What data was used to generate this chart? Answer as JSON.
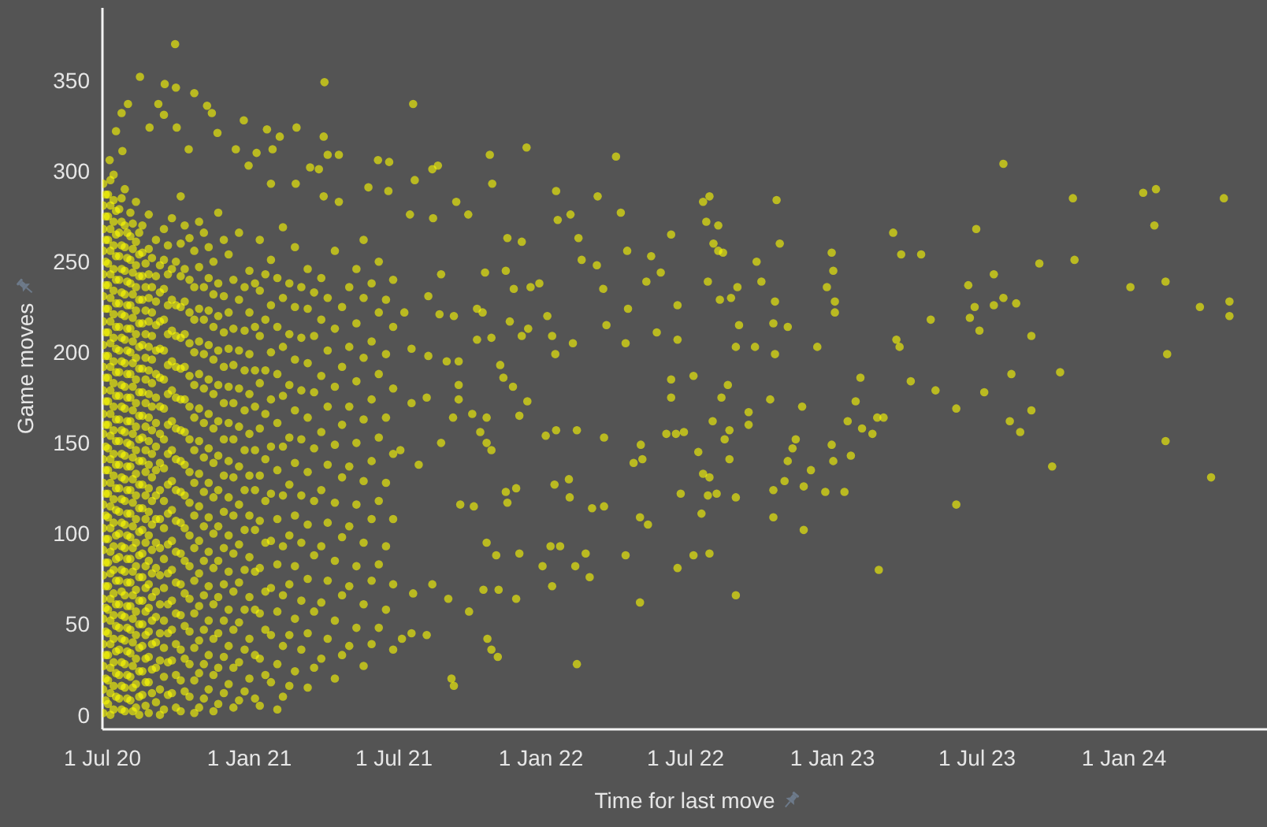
{
  "chart_data": {
    "type": "scatter",
    "xlabel": "Time for last move",
    "ylabel": "Game moves",
    "color": "#ffff00",
    "marker": "circle",
    "xlim": [
      "2020-07-01",
      "2024-06-28"
    ],
    "xticks": [
      {
        "value": "2020-07-01",
        "label": "1 Jul 20"
      },
      {
        "value": "2021-01-01",
        "label": "1 Jan 21"
      },
      {
        "value": "2021-07-01",
        "label": "1 Jul 21"
      },
      {
        "value": "2022-01-01",
        "label": "1 Jan 22"
      },
      {
        "value": "2022-07-01",
        "label": "1 Jul 22"
      },
      {
        "value": "2023-01-01",
        "label": "1 Jan 23"
      },
      {
        "value": "2023-07-01",
        "label": "1 Jul 23"
      },
      {
        "value": "2024-01-01",
        "label": "1 Jan 24"
      }
    ],
    "ylim": [
      -8,
      390
    ],
    "yticks": [
      0,
      50,
      100,
      150,
      200,
      250,
      300,
      350
    ],
    "x": [
      "2020-07-02",
      "2020-07-02",
      "2020-07-02",
      "2020-07-02",
      "2020-07-02",
      "2020-07-02",
      "2020-07-02",
      "2020-07-02",
      "2020-07-02",
      "2020-07-02",
      "2020-07-02",
      "2020-07-02",
      "2020-07-02",
      "2020-07-02",
      "2020-07-02",
      "2020-07-02",
      "2020-07-02",
      "2020-07-02",
      "2020-07-02",
      "2020-07-02",
      "2020-07-02",
      "2020-07-02",
      "2020-07-02",
      "2020-07-02",
      "2020-07-08",
      "2020-07-08",
      "2020-07-08",
      "2020-07-08",
      "2020-07-08",
      "2020-07-08",
      "2020-07-08",
      "2020-07-08",
      "2020-07-08",
      "2020-07-08",
      "2020-07-08",
      "2020-07-08",
      "2020-07-08",
      "2020-07-08",
      "2020-07-08",
      "2020-07-08",
      "2020-07-08",
      "2020-07-08",
      "2020-07-08",
      "2020-07-08",
      "2020-07-08",
      "2020-07-08",
      "2020-07-08",
      "2020-07-15",
      "2020-07-15",
      "2020-07-15",
      "2020-07-15",
      "2020-07-15",
      "2020-07-15",
      "2020-07-15",
      "2020-07-15",
      "2020-07-15",
      "2020-07-15",
      "2020-07-15",
      "2020-07-15",
      "2020-07-15",
      "2020-07-15",
      "2020-07-15",
      "2020-07-15",
      "2020-07-15",
      "2020-07-15",
      "2020-07-15",
      "2020-07-15",
      "2020-07-15",
      "2020-07-15",
      "2020-07-15",
      "2020-07-15",
      "2020-07-22",
      "2020-07-22",
      "2020-07-22",
      "2020-07-22",
      "2020-07-22",
      "2020-07-22",
      "2020-07-22",
      "2020-07-22",
      "2020-07-22",
      "2020-07-22",
      "2020-07-22",
      "2020-07-22",
      "2020-07-22",
      "2020-07-22",
      "2020-07-22",
      "2020-07-22",
      "2020-07-22",
      "2020-07-22",
      "2020-07-22",
      "2020-07-22",
      "2020-07-22",
      "2020-07-22",
      "2020-07-29",
      "2020-07-29",
      "2020-07-29",
      "2020-07-29",
      "2020-07-29",
      "2020-07-29",
      "2020-07-29",
      "2020-07-29",
      "2020-07-29",
      "2020-07-29",
      "2020-07-29",
      "2020-07-29",
      "2020-07-29",
      "2020-07-29",
      "2020-07-29",
      "2020-07-29",
      "2020-07-29",
      "2020-07-29",
      "2020-07-29",
      "2020-07-29",
      "2020-07-29",
      "2020-07-29",
      "2020-07-29",
      "2020-08-05",
      "2020-08-05",
      "2020-08-05",
      "2020-08-05",
      "2020-08-05",
      "2020-08-05",
      "2020-08-05",
      "2020-08-05",
      "2020-08-05",
      "2020-08-05",
      "2020-08-05",
      "2020-08-05",
      "2020-08-05",
      "2020-08-05",
      "2020-08-05",
      "2020-08-05",
      "2020-08-05",
      "2020-08-05",
      "2020-08-05",
      "2020-08-05",
      "2020-08-05",
      "2020-08-05",
      "2020-08-12",
      "2020-08-12",
      "2020-08-12",
      "2020-08-12",
      "2020-08-12",
      "2020-08-12",
      "2020-08-12",
      "2020-08-12",
      "2020-08-12",
      "2020-08-12",
      "2020-08-12",
      "2020-08-12",
      "2020-08-12",
      "2020-08-12",
      "2020-08-12",
      "2020-08-12",
      "2020-08-12",
      "2020-08-12",
      "2020-08-12",
      "2020-08-12",
      "2020-08-12",
      "2020-08-12",
      "2020-08-20",
      "2020-08-20",
      "2020-08-20",
      "2020-08-20",
      "2020-08-20",
      "2020-08-20",
      "2020-08-20",
      "2020-08-20",
      "2020-08-20",
      "2020-08-20",
      "2020-08-20",
      "2020-08-20",
      "2020-08-20",
      "2020-08-20",
      "2020-08-20",
      "2020-08-20",
      "2020-08-20",
      "2020-08-20",
      "2020-08-20",
      "2020-08-20",
      "2020-08-20",
      "2020-08-28",
      "2020-08-28",
      "2020-08-28",
      "2020-08-28",
      "2020-08-28",
      "2020-08-28",
      "2020-08-28",
      "2020-08-28",
      "2020-08-28",
      "2020-08-28",
      "2020-08-28",
      "2020-08-28",
      "2020-08-28",
      "2020-08-28",
      "2020-08-28",
      "2020-08-28",
      "2020-08-28",
      "2020-08-28",
      "2020-08-28",
      "2020-08-28",
      "2020-08-28",
      "2020-09-06",
      "2020-09-06",
      "2020-09-06",
      "2020-09-06",
      "2020-09-06",
      "2020-09-06",
      "2020-09-06",
      "2020-09-06",
      "2020-09-06",
      "2020-09-06",
      "2020-09-06",
      "2020-09-06",
      "2020-09-06",
      "2020-09-06",
      "2020-09-06",
      "2020-09-06",
      "2020-09-06",
      "2020-09-06",
      "2020-09-06",
      "2020-09-16",
      "2020-09-16",
      "2020-09-16",
      "2020-09-16",
      "2020-09-16",
      "2020-09-16",
      "2020-09-16",
      "2020-09-16",
      "2020-09-16",
      "2020-09-16",
      "2020-09-16",
      "2020-09-16",
      "2020-09-16",
      "2020-09-16",
      "2020-09-16",
      "2020-09-16",
      "2020-09-16",
      "2020-09-26",
      "2020-09-26",
      "2020-09-26",
      "2020-09-26",
      "2020-09-26",
      "2020-09-26",
      "2020-09-26",
      "2020-09-26",
      "2020-09-26",
      "2020-09-26",
      "2020-09-26",
      "2020-09-26",
      "2020-09-26",
      "2020-09-26",
      "2020-09-26",
      "2020-09-26",
      "2020-10-07",
      "2020-10-07",
      "2020-10-07",
      "2020-10-07",
      "2020-10-07",
      "2020-10-07",
      "2020-10-07",
      "2020-10-07",
      "2020-10-07",
      "2020-10-07",
      "2020-10-07",
      "2020-10-07",
      "2020-10-07",
      "2020-10-07",
      "2020-10-07",
      "2020-10-07",
      "2020-10-07",
      "2020-10-18",
      "2020-10-18",
      "2020-10-18",
      "2020-10-18",
      "2020-10-18",
      "2020-10-18",
      "2020-10-18",
      "2020-10-18",
      "2020-10-18",
      "2020-10-18",
      "2020-10-18",
      "2020-10-18",
      "2020-10-18",
      "2020-10-18",
      "2020-10-18",
      "2020-10-30",
      "2020-10-30",
      "2020-10-30",
      "2020-10-30",
      "2020-10-30",
      "2020-10-30",
      "2020-10-30",
      "2020-10-30",
      "2020-10-30",
      "2020-10-30",
      "2020-10-30",
      "2020-10-30",
      "2020-10-30",
      "2020-10-30",
      "2020-10-30",
      "2020-11-11",
      "2020-11-11",
      "2020-11-11",
      "2020-11-11",
      "2020-11-11",
      "2020-11-11",
      "2020-11-11",
      "2020-11-11",
      "2020-11-11",
      "2020-11-11",
      "2020-11-11",
      "2020-11-11",
      "2020-11-11",
      "2020-11-11",
      "2020-11-23",
      "2020-11-23",
      "2020-11-23",
      "2020-11-23",
      "2020-11-23",
      "2020-11-23",
      "2020-11-23",
      "2020-11-23",
      "2020-11-23",
      "2020-11-23",
      "2020-11-23",
      "2020-11-23",
      "2020-11-23",
      "2020-11-23",
      "2020-12-06",
      "2020-12-06",
      "2020-12-06",
      "2020-12-06",
      "2020-12-06",
      "2020-12-06",
      "2020-12-06",
      "2020-12-06",
      "2020-12-06",
      "2020-12-06",
      "2020-12-06",
      "2020-12-06",
      "2020-12-19",
      "2020-12-19",
      "2020-12-19",
      "2020-12-19",
      "2020-12-19",
      "2020-12-19",
      "2020-12-19",
      "2020-12-19",
      "2020-12-19",
      "2020-12-19",
      "2020-12-19",
      "2020-12-19",
      "2021-01-01",
      "2021-01-01",
      "2021-01-01",
      "2021-01-01",
      "2021-01-01",
      "2021-01-01",
      "2021-01-01",
      "2021-01-01",
      "2021-01-01",
      "2021-01-01",
      "2021-01-01",
      "2021-01-14",
      "2021-01-14",
      "2021-01-14",
      "2021-01-14",
      "2021-01-14",
      "2021-01-14",
      "2021-01-14",
      "2021-01-14",
      "2021-01-14",
      "2021-01-14",
      "2021-01-14",
      "2021-01-28",
      "2021-01-28",
      "2021-01-28",
      "2021-01-28",
      "2021-01-28",
      "2021-01-28",
      "2021-01-28",
      "2021-01-28",
      "2021-01-28",
      "2021-01-28",
      "2021-02-12",
      "2021-02-12",
      "2021-02-12",
      "2021-02-12",
      "2021-02-12",
      "2021-02-12",
      "2021-02-12",
      "2021-02-12",
      "2021-02-12",
      "2021-02-12",
      "2021-02-27",
      "2021-02-27",
      "2021-02-27",
      "2021-02-27",
      "2021-02-27",
      "2021-02-27",
      "2021-02-27",
      "2021-02-27",
      "2021-02-27",
      "2021-03-15",
      "2021-03-15",
      "2021-03-15",
      "2021-03-15",
      "2021-03-15",
      "2021-03-15",
      "2021-03-15",
      "2021-03-15",
      "2021-03-15",
      "2021-04-01",
      "2021-04-01",
      "2021-04-01",
      "2021-04-01",
      "2021-04-01",
      "2021-04-01",
      "2021-04-01",
      "2021-04-01",
      "2021-04-18",
      "2021-04-18",
      "2021-04-18",
      "2021-04-18",
      "2021-04-18",
      "2021-04-18",
      "2021-04-18",
      "2021-04-18",
      "2021-05-06",
      "2021-05-06",
      "2021-05-06",
      "2021-05-06",
      "2021-05-06",
      "2021-05-06",
      "2021-05-06",
      "2021-05-24",
      "2021-05-24",
      "2021-05-24",
      "2021-05-24",
      "2021-05-24",
      "2021-05-24",
      "2021-05-24",
      "2021-05-24",
      "2021-06-12",
      "2021-06-12",
      "2021-06-12",
      "2021-06-12",
      "2021-06-12",
      "2021-06-12",
      "2021-06-12",
      "2021-06-30",
      "2021-06-30",
      "2021-06-30",
      "2021-06-30",
      "2021-06-30",
      "2021-06-30",
      "2021-06-30",
      "2020-09-30",
      "2020-08-17",
      "2020-09-17",
      "2020-10-01",
      "2020-10-24",
      "2021-04-05",
      "2020-08-02",
      "2020-07-25",
      "2020-09-09",
      "2020-11-09",
      "2020-11-15",
      "2020-09-16",
      "2020-12-25",
      "2020-07-18",
      "2020-08-29",
      "2020-10-02",
      "2020-11-22",
      "2021-01-23",
      "2021-03-01",
      "2021-04-04",
      "2021-02-08",
      "2020-12-15",
      "2021-01-10",
      "2021-01-30",
      "2020-10-17",
      "2021-04-09",
      "2021-04-23",
      "2021-06-11",
      "2021-06-25",
      "2020-07-10",
      "2020-07-26",
      "2021-03-18",
      "2021-03-29",
      "2020-12-31",
      "2021-02-28",
      "2021-01-28",
      "2021-04-04",
      "2021-04-23",
      "2021-05-30",
      "2021-06-24",
      "2021-08-18",
      "2021-07-25",
      "2021-12-14",
      "2021-10-29",
      "2022-04-05",
      "2022-01-20",
      "2022-03-13",
      "2022-04-11",
      "2022-02-07",
      "2022-01-22",
      "2021-09-17",
      "2021-10-02",
      "2021-08-19",
      "2021-11-01",
      "2021-08-25",
      "2021-07-27",
      "2021-07-21",
      "2022-02-17",
      "2021-11-20",
      "2021-12-08",
      "2022-05-19",
      "2022-04-19",
      "2022-03-12",
      "2022-02-21",
      "2022-05-31",
      "2022-05-13",
      "2022-03-20",
      "2021-12-19",
      "2021-12-30",
      "2021-11-28",
      "2021-11-18",
      "2021-10-23",
      "2021-08-29",
      "2021-10-13",
      "2021-10-20",
      "2021-09-14",
      "2021-08-27",
      "2021-08-13",
      "2021-07-14",
      "2022-04-20",
      "2022-03-24",
      "2022-04-17",
      "2022-05-26",
      "2022-02-10",
      "2022-01-15",
      "2022-01-19",
      "2022-01-09",
      "2021-12-16",
      "2021-12-08",
      "2021-11-23",
      "2021-10-31",
      "2021-10-13",
      "2021-09-20",
      "2021-09-05",
      "2021-08-13",
      "2021-07-23",
      "2021-11-11",
      "2021-11-15",
      "2021-11-27",
      "2021-12-15",
      "2021-12-05",
      "2021-10-25",
      "2021-10-07",
      "2021-10-17",
      "2021-10-25",
      "2021-10-31",
      "2021-09-20",
      "2021-09-20",
      "2021-09-13",
      "2021-08-11",
      "2021-07-23",
      "2021-08-29",
      "2021-08-01",
      "2021-07-09",
      "2022-01-07",
      "2022-01-20",
      "2022-02-15",
      "2022-03-21",
      "2022-05-06",
      "2022-06-07",
      "2022-04-27",
      "2022-05-08",
      "2022-03-21",
      "2022-03-06",
      "2022-02-06",
      "2022-01-18",
      "2022-02-05",
      "2021-11-18",
      "2021-12-01",
      "2021-11-20",
      "2021-10-09",
      "2021-09-22",
      "2021-10-25",
      "2021-11-06",
      "2021-12-05",
      "2022-01-13",
      "2022-01-25",
      "2022-02-26",
      "2022-04-17",
      "2022-05-05",
      "2022-05-15",
      "2022-03-03",
      "2022-02-13",
      "2022-01-03",
      "2022-01-15",
      "2021-10-21",
      "2021-11-09",
      "2021-12-01",
      "2021-10-03",
      "2021-09-07",
      "2021-08-18",
      "2021-07-25",
      "2021-07-11",
      "2021-07-23",
      "2021-08-11",
      "2021-10-26",
      "2021-10-31",
      "2021-11-08",
      "2021-09-11",
      "2021-09-14",
      "2022-02-15",
      "2022-05-05",
      "2023-08-03",
      "2023-10-29",
      "2024-01-25",
      "2024-02-10",
      "2024-05-05",
      "2024-02-08",
      "2023-10-31",
      "2023-09-17",
      "2024-01-09",
      "2024-02-22",
      "2024-04-05",
      "2024-05-12",
      "2024-05-12",
      "2024-02-24",
      "2024-02-22",
      "2024-04-19",
      "2023-10-03",
      "2023-10-13",
      "2023-09-07",
      "2023-09-07",
      "2023-08-24",
      "2023-08-11",
      "2023-08-13",
      "2023-07-22",
      "2023-08-03",
      "2023-08-19",
      "2023-07-22",
      "2023-06-30",
      "2023-06-20",
      "2023-06-28",
      "2023-06-22",
      "2023-07-04",
      "2023-07-10",
      "2023-06-05",
      "2023-06-05",
      "2023-05-10",
      "2023-05-04",
      "2023-04-22",
      "2023-03-28",
      "2023-03-18",
      "2023-04-09",
      "2023-03-22",
      "2023-03-26",
      "2023-02-28",
      "2023-02-20",
      "2023-02-26",
      "2023-03-06",
      "2023-02-07",
      "2023-02-05",
      "2023-01-30",
      "2023-01-20",
      "2023-01-24",
      "2022-12-31",
      "2023-01-02",
      "2022-12-25",
      "2023-01-04",
      "2023-01-04",
      "2022-12-13",
      "2022-11-24",
      "2022-12-31",
      "2023-01-02",
      "2022-12-05",
      "2022-11-26",
      "2022-12-23",
      "2023-01-16",
      "2022-11-26",
      "2022-11-16",
      "2022-11-12",
      "2022-11-06",
      "2022-11-02",
      "2022-10-19",
      "2022-10-19",
      "2022-10-23",
      "2022-10-27",
      "2022-10-21",
      "2022-10-19",
      "2022-11-06",
      "2022-10-21",
      "2022-10-15",
      "2022-09-28",
      "2022-10-04",
      "2022-09-26",
      "2022-09-02",
      "2022-09-06",
      "2022-09-04",
      "2022-08-27",
      "2022-08-13",
      "2022-07-31",
      "2022-07-23",
      "2022-07-27",
      "2022-08-11",
      "2022-08-05",
      "2022-08-11",
      "2022-08-17",
      "2022-07-29",
      "2022-06-21",
      "2022-06-21",
      "2022-06-13",
      "2022-07-11",
      "2022-06-13",
      "2022-06-13",
      "2022-08-23",
      "2022-08-15",
      "2022-09-18",
      "2022-09-18",
      "2022-08-04",
      "2022-08-25",
      "2022-08-19",
      "2022-06-29",
      "2022-06-19",
      "2022-07-17",
      "2022-08-25",
      "2022-07-23",
      "2022-07-31",
      "2022-06-25",
      "2022-07-29",
      "2022-08-09",
      "2022-09-02",
      "2022-07-21",
      "2022-07-11",
      "2022-07-31",
      "2022-06-21",
      "2022-09-02",
      "2020-07-05",
      "2020-07-05",
      "2020-07-05",
      "2020-07-05",
      "2020-07-05",
      "2020-07-05",
      "2020-07-05",
      "2020-07-05",
      "2020-07-05",
      "2020-07-05",
      "2020-07-05",
      "2020-07-05",
      "2020-07-05",
      "2020-07-05",
      "2020-07-05",
      "2020-07-05",
      "2020-07-05",
      "2020-07-05",
      "2020-07-05",
      "2020-07-05",
      "2020-07-05",
      "2020-07-05",
      "2020-07-05",
      "2020-07-11",
      "2020-07-11",
      "2020-07-11",
      "2020-07-11",
      "2020-07-11",
      "2020-07-11",
      "2020-07-11",
      "2020-07-11",
      "2020-07-11",
      "2020-07-11",
      "2020-07-11",
      "2020-07-11",
      "2020-07-11",
      "2020-07-11",
      "2020-07-11",
      "2020-07-11",
      "2020-07-11",
      "2020-07-11",
      "2020-07-11",
      "2020-07-11",
      "2020-07-11",
      "2020-07-11",
      "2020-07-11",
      "2020-07-11",
      "2020-07-18",
      "2020-07-18",
      "2020-07-18",
      "2020-07-18",
      "2020-07-18",
      "2020-07-18",
      "2020-07-18",
      "2020-07-18",
      "2020-07-18",
      "2020-07-18",
      "2020-07-18",
      "2020-07-18",
      "2020-07-18",
      "2020-07-18",
      "2020-07-18",
      "2020-07-18",
      "2020-07-18",
      "2020-07-18",
      "2020-07-18",
      "2020-07-18",
      "2020-07-18",
      "2020-07-18",
      "2020-07-25",
      "2020-07-25",
      "2020-07-25",
      "2020-07-25",
      "2020-07-25",
      "2020-07-25",
      "2020-07-25",
      "2020-07-25",
      "2020-07-25",
      "2020-07-25",
      "2020-07-25",
      "2020-07-25",
      "2020-07-25",
      "2020-07-25",
      "2020-07-25",
      "2020-07-25",
      "2020-07-25",
      "2020-07-25",
      "2020-07-25",
      "2020-07-25",
      "2020-07-25",
      "2020-07-25",
      "2020-07-25",
      "2020-08-01",
      "2020-08-01",
      "2020-08-01",
      "2020-08-01",
      "2020-08-01",
      "2020-08-01",
      "2020-08-01",
      "2020-08-01",
      "2020-08-01",
      "2020-08-01",
      "2020-08-01",
      "2020-08-01",
      "2020-08-01",
      "2020-08-01",
      "2020-08-01",
      "2020-08-01",
      "2020-08-01",
      "2020-08-01",
      "2020-08-01",
      "2020-08-01",
      "2020-08-01",
      "2020-08-08",
      "2020-08-08",
      "2020-08-08",
      "2020-08-08",
      "2020-08-08",
      "2020-08-08",
      "2020-08-08",
      "2020-08-08",
      "2020-08-08",
      "2020-08-08",
      "2020-08-08",
      "2020-08-08",
      "2020-08-08",
      "2020-08-08",
      "2020-08-08",
      "2020-08-08",
      "2020-08-08",
      "2020-08-08",
      "2020-08-08",
      "2020-08-08",
      "2020-08-08",
      "2020-08-08",
      "2020-08-16",
      "2020-08-16",
      "2020-08-16",
      "2020-08-16",
      "2020-08-16",
      "2020-08-16",
      "2020-08-16",
      "2020-08-16",
      "2020-08-16",
      "2020-08-16",
      "2020-08-16",
      "2020-08-16",
      "2020-08-16",
      "2020-08-16",
      "2020-08-16",
      "2020-08-16",
      "2020-08-16",
      "2020-08-16",
      "2020-08-16",
      "2020-08-16",
      "2020-08-16",
      "2020-08-16",
      "2020-08-24",
      "2020-08-24",
      "2020-08-24",
      "2020-08-24",
      "2020-08-24",
      "2020-08-24",
      "2020-08-24",
      "2020-08-24",
      "2020-08-24",
      "2020-08-24",
      "2020-08-24",
      "2020-08-24",
      "2020-08-24",
      "2020-08-24",
      "2020-08-24",
      "2020-08-24",
      "2020-08-24",
      "2020-08-24",
      "2020-08-24",
      "2020-08-24",
      "2020-09-01",
      "2020-09-01",
      "2020-09-01",
      "2020-09-01",
      "2020-09-01",
      "2020-09-01",
      "2020-09-01",
      "2020-09-01",
      "2020-09-01",
      "2020-09-01",
      "2020-09-01",
      "2020-09-01",
      "2020-09-01",
      "2020-09-01",
      "2020-09-01",
      "2020-09-01",
      "2020-09-01",
      "2020-09-01",
      "2020-09-01",
      "2020-09-11",
      "2020-09-11",
      "2020-09-11",
      "2020-09-11",
      "2020-09-11",
      "2020-09-11",
      "2020-09-11",
      "2020-09-11",
      "2020-09-11",
      "2020-09-11",
      "2020-09-11",
      "2020-09-11",
      "2020-09-11",
      "2020-09-11",
      "2020-09-11",
      "2020-09-11",
      "2020-09-11",
      "2020-09-21",
      "2020-09-21",
      "2020-09-21",
      "2020-09-21",
      "2020-09-21",
      "2020-09-21",
      "2020-09-21",
      "2020-09-21",
      "2020-09-21",
      "2020-09-21",
      "2020-09-21",
      "2020-09-21",
      "2020-09-21",
      "2020-09-21",
      "2020-09-21",
      "2020-09-21",
      "2020-10-01",
      "2020-10-01",
      "2020-10-01",
      "2020-10-01",
      "2020-10-01",
      "2020-10-01",
      "2020-10-01",
      "2020-10-01",
      "2020-10-01",
      "2020-10-01",
      "2020-10-01",
      "2020-10-01",
      "2020-10-01",
      "2020-10-01",
      "2020-10-01",
      "2020-10-12",
      "2020-10-12",
      "2020-10-12",
      "2020-10-12",
      "2020-10-12",
      "2020-10-12",
      "2020-10-12",
      "2020-10-12",
      "2020-10-12",
      "2020-10-12",
      "2020-10-12",
      "2020-10-12",
      "2020-10-12",
      "2020-10-12",
      "2020-10-12",
      "2020-10-24",
      "2020-10-24",
      "2020-10-24",
      "2020-10-24",
      "2020-10-24",
      "2020-10-24",
      "2020-10-24",
      "2020-10-24",
      "2020-10-24",
      "2020-10-24",
      "2020-10-24",
      "2020-10-24",
      "2020-10-24",
      "2020-10-24",
      "2020-10-24",
      "2020-11-05",
      "2020-11-05",
      "2020-11-05",
      "2020-11-05",
      "2020-11-05",
      "2020-11-05",
      "2020-11-05",
      "2020-11-05",
      "2020-11-05",
      "2020-11-05",
      "2020-11-05",
      "2020-11-05",
      "2020-11-05",
      "2020-11-05",
      "2020-11-17",
      "2020-11-17",
      "2020-11-17",
      "2020-11-17",
      "2020-11-17",
      "2020-11-17",
      "2020-11-17",
      "2020-11-17",
      "2020-11-17",
      "2020-11-17",
      "2020-11-17",
      "2020-11-17",
      "2020-11-17",
      "2020-11-17",
      "2020-11-30",
      "2020-11-30",
      "2020-11-30",
      "2020-11-30",
      "2020-11-30",
      "2020-11-30",
      "2020-11-30",
      "2020-11-30",
      "2020-11-30",
      "2020-11-30",
      "2020-11-30",
      "2020-11-30",
      "2020-11-30",
      "2020-12-12",
      "2020-12-12",
      "2020-12-12",
      "2020-12-12",
      "2020-12-12",
      "2020-12-12",
      "2020-12-12",
      "2020-12-12",
      "2020-12-12",
      "2020-12-12",
      "2020-12-12",
      "2020-12-12",
      "2020-12-26",
      "2020-12-26",
      "2020-12-26",
      "2020-12-26",
      "2020-12-26",
      "2020-12-26",
      "2020-12-26",
      "2020-12-26",
      "2020-12-26",
      "2020-12-26",
      "2020-12-26",
      "2021-01-08",
      "2021-01-08",
      "2021-01-08",
      "2021-01-08",
      "2021-01-08",
      "2021-01-08",
      "2021-01-08",
      "2021-01-08",
      "2021-01-08",
      "2021-01-08",
      "2021-01-08",
      "2021-01-21",
      "2021-01-21",
      "2021-01-21",
      "2021-01-21",
      "2021-01-21",
      "2021-01-21",
      "2021-01-21",
      "2021-01-21",
      "2021-01-21",
      "2021-01-21",
      "2021-02-05",
      "2021-02-05",
      "2021-02-05",
      "2021-02-05",
      "2021-02-05",
      "2021-02-05",
      "2021-02-05",
      "2021-02-05",
      "2021-02-05",
      "2021-02-05",
      "2021-02-20",
      "2021-02-20",
      "2021-02-20",
      "2021-02-20",
      "2021-02-20",
      "2021-02-20",
      "2021-02-20",
      "2021-02-20",
      "2021-02-20",
      "2021-03-07",
      "2021-03-07",
      "2021-03-07",
      "2021-03-07",
      "2021-03-07",
      "2021-03-07",
      "2021-03-07",
      "2021-03-07",
      "2021-03-23",
      "2021-03-23",
      "2021-03-23",
      "2021-03-23",
      "2021-03-23",
      "2021-03-23",
      "2021-03-23",
      "2021-03-23",
      "2021-04-09",
      "2021-04-09",
      "2021-04-09",
      "2021-04-09",
      "2021-04-09",
      "2021-04-09",
      "2021-04-09",
      "2021-04-27",
      "2021-04-27",
      "2021-04-27",
      "2021-04-27",
      "2021-04-27",
      "2021-04-27",
      "2021-04-27",
      "2021-05-15",
      "2021-05-15",
      "2021-05-15",
      "2021-05-15",
      "2021-05-15",
      "2021-05-15",
      "2021-05-15",
      "2021-06-03",
      "2021-06-03",
      "2021-06-03",
      "2021-06-03",
      "2021-06-03",
      "2021-06-03",
      "2021-06-03",
      "2021-06-21",
      "2021-06-21",
      "2021-06-21",
      "2021-06-21",
      "2021-06-21",
      "2021-06-21"
    ],
    "values": [
      1,
      14,
      27,
      39,
      53,
      64,
      77,
      91,
      103,
      116,
      128,
      141,
      155,
      166,
      179,
      192,
      204,
      217,
      231,
      243,
      256,
      268,
      281,
      293,
      6,
      19,
      33,
      45,
      58,
      71,
      84,
      97,
      109,
      122,
      135,
      147,
      160,
      173,
      186,
      198,
      211,
      224,
      237,
      249,
      262,
      275,
      287,
      3,
      16,
      29,
      42,
      55,
      67,
      80,
      93,
      106,
      119,
      132,
      144,
      157,
      170,
      183,
      195,
      208,
      221,
      234,
      246,
      259,
      272,
      284,
      298,
      9,
      22,
      36,
      48,
      61,
      74,
      87,
      100,
      112,
      125,
      138,
      151,
      163,
      176,
      189,
      201,
      214,
      227,
      240,
      253,
      266,
      279,
      2,
      15,
      28,
      41,
      54,
      66,
      79,
      92,
      105,
      118,
      130,
      143,
      156,
      169,
      181,
      194,
      207,
      220,
      232,
      245,
      258,
      270,
      290,
      8,
      21,
      34,
      47,
      60,
      73,
      86,
      98,
      111,
      124,
      137,
      149,
      162,
      175,
      188,
      200,
      213,
      226,
      238,
      251,
      264,
      277,
      4,
      17,
      31,
      44,
      57,
      69,
      82,
      95,
      108,
      121,
      133,
      146,
      159,
      172,
      185,
      197,
      210,
      223,
      236,
      248,
      261,
      283,
      11,
      24,
      38,
      50,
      63,
      76,
      89,
      102,
      114,
      127,
      140,
      153,
      165,
      178,
      191,
      204,
      216,
      229,
      242,
      255,
      270,
      1,
      18,
      32,
      46,
      59,
      72,
      85,
      99,
      112,
      125,
      138,
      151,
      164,
      177,
      190,
      203,
      217,
      230,
      243,
      257,
      276,
      7,
      26,
      40,
      54,
      68,
      81,
      95,
      108,
      121,
      135,
      148,
      161,
      175,
      188,
      201,
      215,
      228,
      242,
      262,
      3,
      21,
      37,
      52,
      70,
      86,
      103,
      118,
      136,
      152,
      169,
      185,
      201,
      218,
      235,
      251,
      268,
      12,
      30,
      47,
      63,
      80,
      96,
      113,
      129,
      146,
      162,
      179,
      195,
      212,
      229,
      246,
      274,
      2,
      19,
      36,
      55,
      72,
      89,
      106,
      123,
      140,
      157,
      174,
      191,
      208,
      225,
      242,
      260,
      286,
      10,
      28,
      46,
      64,
      82,
      99,
      117,
      134,
      152,
      170,
      187,
      205,
      222,
      240,
      263,
      4,
      23,
      41,
      60,
      78,
      96,
      115,
      133,
      151,
      169,
      188,
      206,
      224,
      247,
      272,
      14,
      33,
      52,
      71,
      90,
      109,
      128,
      147,
      166,
      185,
      204,
      223,
      241,
      258,
      6,
      26,
      45,
      65,
      85,
      104,
      124,
      143,
      162,
      182,
      201,
      220,
      238,
      277,
      17,
      38,
      58,
      79,
      99,
      120,
      140,
      161,
      181,
      202,
      222,
      254,
      8,
      29,
      51,
      73,
      94,
      116,
      137,
      159,
      180,
      201,
      229,
      266,
      20,
      42,
      65,
      87,
      110,
      132,
      155,
      177,
      199,
      222,
      245,
      5,
      31,
      56,
      81,
      107,
      132,
      158,
      183,
      209,
      234,
      262,
      18,
      44,
      70,
      96,
      122,
      148,
      174,
      200,
      226,
      251,
      10,
      38,
      66,
      93,
      121,
      148,
      176,
      203,
      230,
      269,
      24,
      53,
      82,
      110,
      139,
      168,
      196,
      225,
      258,
      15,
      45,
      75,
      105,
      134,
      164,
      194,
      224,
      246,
      31,
      62,
      93,
      124,
      156,
      187,
      218,
      241,
      20,
      52,
      85,
      117,
      149,
      181,
      213,
      256,
      38,
      71,
      104,
      137,
      170,
      203,
      236,
      27,
      61,
      95,
      129,
      163,
      197,
      230,
      262,
      48,
      83,
      118,
      153,
      188,
      222,
      250,
      36,
      72,
      108,
      144,
      180,
      214,
      240,
      370,
      352,
      348,
      346,
      343,
      349,
      337,
      332,
      337,
      336,
      332,
      331,
      328,
      322,
      324,
      324,
      321,
      323,
      324,
      319,
      319,
      312,
      310,
      312,
      312,
      309,
      309,
      306,
      305,
      306,
      311,
      302,
      301,
      303,
      293,
      293,
      286,
      283,
      291,
      289,
      301,
      337,
      313,
      309,
      308,
      289,
      286,
      277,
      276,
      273,
      283,
      276,
      274,
      293,
      303,
      295,
      276,
      263,
      263,
      261,
      253,
      256,
      248,
      251,
      244,
      239,
      235,
      236,
      238,
      235,
      245,
      244,
      243,
      224,
      222,
      220,
      221,
      231,
      222,
      224,
      215,
      205,
      211,
      205,
      209,
      199,
      220,
      213,
      209,
      217,
      208,
      207,
      195,
      195,
      198,
      202,
      193,
      186,
      181,
      173,
      165,
      164,
      166,
      156,
      150,
      146,
      182,
      174,
      164,
      175,
      172,
      150,
      138,
      146,
      154,
      157,
      157,
      153,
      149,
      155,
      139,
      141,
      115,
      114,
      120,
      127,
      130,
      123,
      125,
      117,
      115,
      116,
      95,
      88,
      89,
      93,
      93,
      89,
      88,
      109,
      105,
      76,
      82,
      82,
      71,
      69,
      69,
      64,
      57,
      64,
      72,
      67,
      42,
      45,
      44,
      42,
      36,
      32,
      20,
      16,
      28,
      62,
      304,
      285,
      288,
      290,
      285,
      270,
      251,
      249,
      236,
      239,
      225,
      228,
      220,
      199,
      151,
      131,
      137,
      189,
      209,
      168,
      156,
      162,
      188,
      243,
      230,
      227,
      226,
      268,
      237,
      225,
      219,
      212,
      178,
      169,
      116,
      179,
      218,
      254,
      254,
      266,
      184,
      207,
      203,
      80,
      155,
      164,
      164,
      158,
      186,
      173,
      162,
      143,
      255,
      245,
      236,
      228,
      222,
      203,
      170,
      149,
      140,
      135,
      126,
      123,
      123,
      102,
      152,
      147,
      140,
      129,
      124,
      109,
      284,
      260,
      228,
      216,
      214,
      199,
      174,
      250,
      239,
      203,
      203,
      215,
      236,
      230,
      229,
      286,
      283,
      272,
      270,
      260,
      256,
      255,
      239,
      226,
      207,
      265,
      187,
      185,
      175,
      182,
      175,
      167,
      160,
      162,
      157,
      152,
      156,
      155,
      145,
      141,
      133,
      131,
      122,
      121,
      122,
      120,
      111,
      88,
      89,
      81,
      66,
      8,
      20,
      33,
      46,
      59,
      71,
      84,
      97,
      110,
      122,
      135,
      148,
      160,
      173,
      186,
      198,
      211,
      224,
      237,
      250,
      262,
      275,
      287,
      0,
      12,
      26,
      39,
      52,
      64,
      78,
      90,
      103,
      115,
      128,
      141,
      154,
      166,
      179,
      192,
      205,
      217,
      230,
      243,
      256,
      268,
      281,
      295,
      10,
      23,
      35,
      49,
      61,
      74,
      86,
      99,
      113,
      125,
      138,
      151,
      163,
      176,
      189,
      202,
      214,
      227,
      240,
      253,
      265,
      278,
      3,
      16,
      29,
      42,
      55,
      68,
      80,
      93,
      106,
      119,
      131,
      144,
      157,
      170,
      182,
      195,
      208,
      221,
      233,
      246,
      259,
      272,
      285,
      9,
      22,
      35,
      48,
      60,
      73,
      86,
      99,
      111,
      124,
      137,
      150,
      162,
      175,
      188,
      201,
      213,
      226,
      239,
      252,
      266,
      2,
      15,
      27,
      40,
      53,
      66,
      79,
      92,
      104,
      117,
      130,
      142,
      155,
      168,
      181,
      194,
      206,
      219,
      232,
      244,
      257,
      271,
      0,
      10,
      24,
      37,
      50,
      63,
      76,
      88,
      101,
      114,
      127,
      140,
      152,
      165,
      178,
      191,
      203,
      216,
      229,
      242,
      254,
      266,
      5,
      18,
      31,
      44,
      57,
      70,
      82,
      95,
      108,
      121,
      134,
      146,
      159,
      172,
      185,
      197,
      210,
      223,
      236,
      249,
      12,
      25,
      39,
      52,
      65,
      78,
      91,
      105,
      118,
      131,
      144,
      157,
      170,
      183,
      196,
      209,
      222,
      236,
      252,
      0,
      14,
      30,
      45,
      61,
      77,
      92,
      108,
      124,
      139,
      155,
      170,
      186,
      202,
      217,
      233,
      248,
      11,
      29,
      45,
      61,
      78,
      94,
      111,
      127,
      144,
      160,
      177,
      193,
      210,
      226,
      243,
      259,
      4,
      22,
      39,
      56,
      73,
      90,
      107,
      124,
      141,
      158,
      175,
      192,
      209,
      226,
      250,
      13,
      31,
      49,
      67,
      85,
      103,
      121,
      138,
      156,
      174,
      192,
      210,
      228,
      246,
      270,
      1,
      19,
      37,
      56,
      74,
      92,
      110,
      128,
      146,
      164,
      182,
      200,
      218,
      236,
      256,
      9,
      28,
      47,
      66,
      85,
      104,
      123,
      142,
      161,
      180,
      199,
      218,
      236,
      266,
      2,
      22,
      42,
      61,
      81,
      100,
      120,
      139,
      158,
      177,
      196,
      214,
      232,
      250,
      12,
      32,
      52,
      72,
      92,
      112,
      132,
      152,
      172,
      192,
      211,
      231,
      262,
      4,
      26,
      47,
      68,
      89,
      110,
      131,
      152,
      172,
      193,
      213,
      240,
      13,
      36,
      58,
      80,
      102,
      124,
      146,
      168,
      190,
      212,
      236,
      9,
      33,
      58,
      79,
      102,
      124,
      146,
      170,
      190,
      214,
      238,
      22,
      47,
      68,
      95,
      118,
      141,
      166,
      190,
      218,
      243,
      3,
      28,
      57,
      83,
      108,
      135,
      161,
      188,
      214,
      241,
      16,
      44,
      72,
      99,
      127,
      153,
      182,
      210,
      238,
      36,
      63,
      95,
      121,
      152,
      179,
      208,
      236,
      26,
      57,
      88,
      118,
      147,
      178,
      209,
      233,
      42,
      74,
      106,
      138,
      170,
      201,
      230,
      33,
      66,
      98,
      131,
      160,
      192,
      225,
      48,
      82,
      116,
      150,
      184,
      216,
      246,
      39,
      74,
      108,
      140,
      174,
      206,
      238,
      58,
      93,
      128,
      164,
      199,
      229
    ]
  }
}
